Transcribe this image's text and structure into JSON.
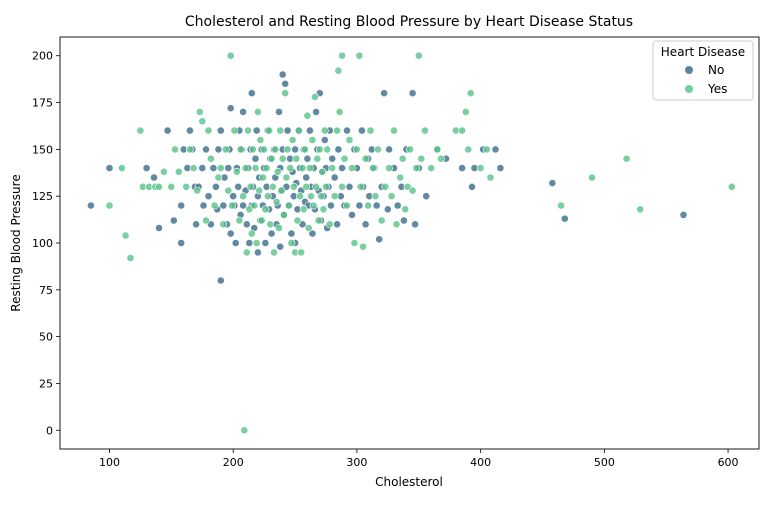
{
  "chart_data": {
    "type": "scatter",
    "title": "Cholesterol and Resting Blood Pressure by Heart Disease Status",
    "xlabel": "Cholesterol",
    "ylabel": "Resting Blood Pressure",
    "xlim": [
      60,
      625
    ],
    "ylim": [
      -10,
      210
    ],
    "xticks": [
      100,
      200,
      300,
      400,
      500,
      600
    ],
    "yticks": [
      0,
      25,
      50,
      75,
      100,
      125,
      150,
      175,
      200
    ],
    "grid": false,
    "legend": {
      "title": "Heart Disease",
      "placement": "top-right"
    },
    "series": [
      {
        "name": "No",
        "color": "#3e6f8e",
        "points": [
          [
            85,
            120
          ],
          [
            100,
            140
          ],
          [
            130,
            140
          ],
          [
            136,
            135
          ],
          [
            140,
            108
          ],
          [
            147,
            160
          ],
          [
            152,
            112
          ],
          [
            158,
            100
          ],
          [
            158,
            120
          ],
          [
            160,
            150
          ],
          [
            163,
            140
          ],
          [
            165,
            160
          ],
          [
            167,
            150
          ],
          [
            169,
            130
          ],
          [
            170,
            110
          ],
          [
            172,
            130
          ],
          [
            175,
            140
          ],
          [
            176,
            120
          ],
          [
            178,
            150
          ],
          [
            180,
            125
          ],
          [
            182,
            110
          ],
          [
            184,
            140
          ],
          [
            186,
            130
          ],
          [
            187,
            118
          ],
          [
            188,
            150
          ],
          [
            190,
            80
          ],
          [
            190,
            160
          ],
          [
            192,
            120
          ],
          [
            193,
            135
          ],
          [
            195,
            110
          ],
          [
            196,
            140
          ],
          [
            197,
            150
          ],
          [
            198,
            105
          ],
          [
            198,
            172
          ],
          [
            200,
            125
          ],
          [
            201,
            120
          ],
          [
            202,
            100
          ],
          [
            203,
            140
          ],
          [
            204,
            130
          ],
          [
            205,
            160
          ],
          [
            206,
            115
          ],
          [
            207,
            150
          ],
          [
            208,
            120
          ],
          [
            208,
            170
          ],
          [
            210,
            128
          ],
          [
            211,
            110
          ],
          [
            212,
            140
          ],
          [
            213,
            100
          ],
          [
            214,
            150
          ],
          [
            215,
            120
          ],
          [
            215,
            180
          ],
          [
            216,
            130
          ],
          [
            217,
            108
          ],
          [
            218,
            145
          ],
          [
            219,
            160
          ],
          [
            220,
            125
          ],
          [
            220,
            95
          ],
          [
            221,
            135
          ],
          [
            222,
            112
          ],
          [
            223,
            150
          ],
          [
            224,
            120
          ],
          [
            225,
            140
          ],
          [
            226,
            100
          ],
          [
            227,
            130
          ],
          [
            228,
            160
          ],
          [
            229,
            118
          ],
          [
            230,
            145
          ],
          [
            231,
            105
          ],
          [
            232,
            125
          ],
          [
            233,
            150
          ],
          [
            234,
            135
          ],
          [
            235,
            110
          ],
          [
            236,
            120
          ],
          [
            237,
            170
          ],
          [
            238,
            140
          ],
          [
            238,
            98
          ],
          [
            239,
            128
          ],
          [
            240,
            190
          ],
          [
            240,
            150
          ],
          [
            241,
            115
          ],
          [
            242,
            185
          ],
          [
            243,
            130
          ],
          [
            244,
            160
          ],
          [
            245,
            120
          ],
          [
            246,
            145
          ],
          [
            247,
            105
          ],
          [
            248,
            138
          ],
          [
            249,
            125
          ],
          [
            250,
            150
          ],
          [
            250,
            100
          ],
          [
            251,
            132
          ],
          [
            252,
            118
          ],
          [
            253,
            160
          ],
          [
            254,
            140
          ],
          [
            255,
            128
          ],
          [
            256,
            110
          ],
          [
            257,
            150
          ],
          [
            258,
            122
          ],
          [
            259,
            135
          ],
          [
            260,
            145
          ],
          [
            261,
            120
          ],
          [
            262,
            160
          ],
          [
            263,
            130
          ],
          [
            264,
            105
          ],
          [
            265,
            140
          ],
          [
            266,
            118
          ],
          [
            267,
            170
          ],
          [
            268,
            150
          ],
          [
            269,
            128
          ],
          [
            270,
            180
          ],
          [
            271,
            112
          ],
          [
            272,
            138
          ],
          [
            273,
            125
          ],
          [
            274,
            155
          ],
          [
            275,
            140
          ],
          [
            276,
            108
          ],
          [
            277,
            130
          ],
          [
            278,
            160
          ],
          [
            279,
            120
          ],
          [
            280,
            145
          ],
          [
            282,
            135
          ],
          [
            284,
            110
          ],
          [
            285,
            150
          ],
          [
            287,
            125
          ],
          [
            288,
            140
          ],
          [
            290,
            120
          ],
          [
            292,
            160
          ],
          [
            294,
            130
          ],
          [
            296,
            115
          ],
          [
            298,
            150
          ],
          [
            300,
            140
          ],
          [
            302,
            120
          ],
          [
            304,
            160
          ],
          [
            305,
            130
          ],
          [
            307,
            110
          ],
          [
            309,
            145
          ],
          [
            310,
            125
          ],
          [
            312,
            150
          ],
          [
            314,
            140
          ],
          [
            316,
            120
          ],
          [
            318,
            102
          ],
          [
            320,
            130
          ],
          [
            322,
            180
          ],
          [
            325,
            118
          ],
          [
            326,
            150
          ],
          [
            330,
            140
          ],
          [
            333,
            120
          ],
          [
            336,
            130
          ],
          [
            338,
            112
          ],
          [
            340,
            150
          ],
          [
            345,
            180
          ],
          [
            347,
            110
          ],
          [
            350,
            140
          ],
          [
            356,
            125
          ],
          [
            365,
            150
          ],
          [
            372,
            145
          ],
          [
            385,
            140
          ],
          [
            393,
            130
          ],
          [
            395,
            140
          ],
          [
            402,
            150
          ],
          [
            412,
            150
          ],
          [
            416,
            140
          ],
          [
            458,
            132
          ],
          [
            468,
            113
          ],
          [
            564,
            115
          ]
        ]
      },
      {
        "name": "Yes",
        "color": "#5bc48a",
        "points": [
          [
            100,
            120
          ],
          [
            110,
            140
          ],
          [
            113,
            104
          ],
          [
            117,
            92
          ],
          [
            125,
            160
          ],
          [
            127,
            130
          ],
          [
            132,
            130
          ],
          [
            137,
            130
          ],
          [
            140,
            130
          ],
          [
            144,
            138
          ],
          [
            150,
            130
          ],
          [
            153,
            150
          ],
          [
            156,
            138
          ],
          [
            162,
            130
          ],
          [
            165,
            150
          ],
          [
            168,
            140
          ],
          [
            171,
            128
          ],
          [
            173,
            170
          ],
          [
            175,
            165
          ],
          [
            178,
            112
          ],
          [
            180,
            160
          ],
          [
            182,
            145
          ],
          [
            185,
            120
          ],
          [
            188,
            135
          ],
          [
            190,
            140
          ],
          [
            192,
            110
          ],
          [
            194,
            150
          ],
          [
            196,
            128
          ],
          [
            198,
            200
          ],
          [
            199,
            120
          ],
          [
            201,
            160
          ],
          [
            203,
            138
          ],
          [
            205,
            112
          ],
          [
            206,
            150
          ],
          [
            208,
            125
          ],
          [
            209,
            0
          ],
          [
            210,
            140
          ],
          [
            211,
            95
          ],
          [
            212,
            160
          ],
          [
            213,
            118
          ],
          [
            214,
            130
          ],
          [
            215,
            105
          ],
          [
            216,
            150
          ],
          [
            217,
            120
          ],
          [
            218,
            140
          ],
          [
            219,
            100
          ],
          [
            220,
            170
          ],
          [
            221,
            128
          ],
          [
            222,
            155
          ],
          [
            223,
            112
          ],
          [
            224,
            135
          ],
          [
            225,
            150
          ],
          [
            226,
            118
          ],
          [
            227,
            140
          ],
          [
            228,
            125
          ],
          [
            229,
            160
          ],
          [
            230,
            110
          ],
          [
            231,
            145
          ],
          [
            232,
            130
          ],
          [
            233,
            95
          ],
          [
            234,
            150
          ],
          [
            235,
            122
          ],
          [
            236,
            138
          ],
          [
            237,
            108
          ],
          [
            238,
            160
          ],
          [
            239,
            128
          ],
          [
            240,
            145
          ],
          [
            241,
            115
          ],
          [
            242,
            180
          ],
          [
            243,
            135
          ],
          [
            244,
            150
          ],
          [
            245,
            120
          ],
          [
            246,
            140
          ],
          [
            247,
            100
          ],
          [
            248,
            155
          ],
          [
            249,
            130
          ],
          [
            250,
            95
          ],
          [
            251,
            145
          ],
          [
            252,
            112
          ],
          [
            253,
            160
          ],
          [
            254,
            125
          ],
          [
            255,
            95
          ],
          [
            256,
            140
          ],
          [
            257,
            118
          ],
          [
            258,
            150
          ],
          [
            259,
            130
          ],
          [
            260,
            168
          ],
          [
            261,
            108
          ],
          [
            262,
            140
          ],
          [
            263,
            125
          ],
          [
            264,
            155
          ],
          [
            265,
            120
          ],
          [
            266,
            178
          ],
          [
            267,
            130
          ],
          [
            268,
            145
          ],
          [
            269,
            112
          ],
          [
            270,
            150
          ],
          [
            271,
            125
          ],
          [
            272,
            138
          ],
          [
            273,
            118
          ],
          [
            274,
            160
          ],
          [
            275,
            130
          ],
          [
            276,
            150
          ],
          [
            278,
            110
          ],
          [
            280,
            140
          ],
          [
            282,
            125
          ],
          [
            284,
            160
          ],
          [
            285,
            192
          ],
          [
            286,
            170
          ],
          [
            288,
            200
          ],
          [
            288,
            130
          ],
          [
            290,
            145
          ],
          [
            292,
            120
          ],
          [
            294,
            155
          ],
          [
            296,
            140
          ],
          [
            298,
            100
          ],
          [
            300,
            150
          ],
          [
            302,
            200
          ],
          [
            303,
            130
          ],
          [
            305,
            98
          ],
          [
            307,
            145
          ],
          [
            309,
            120
          ],
          [
            311,
            160
          ],
          [
            313,
            140
          ],
          [
            315,
            125
          ],
          [
            317,
            150
          ],
          [
            320,
            112
          ],
          [
            323,
            130
          ],
          [
            326,
            140
          ],
          [
            328,
            125
          ],
          [
            330,
            160
          ],
          [
            332,
            110
          ],
          [
            335,
            135
          ],
          [
            337,
            145
          ],
          [
            339,
            118
          ],
          [
            341,
            130
          ],
          [
            343,
            150
          ],
          [
            345,
            128
          ],
          [
            348,
            140
          ],
          [
            350,
            200
          ],
          [
            352,
            145
          ],
          [
            355,
            160
          ],
          [
            360,
            140
          ],
          [
            365,
            150
          ],
          [
            368,
            145
          ],
          [
            380,
            160
          ],
          [
            385,
            160
          ],
          [
            388,
            170
          ],
          [
            390,
            150
          ],
          [
            392,
            180
          ],
          [
            400,
            140
          ],
          [
            405,
            150
          ],
          [
            408,
            135
          ],
          [
            465,
            120
          ],
          [
            490,
            135
          ],
          [
            518,
            145
          ],
          [
            529,
            118
          ],
          [
            603,
            130
          ]
        ]
      }
    ]
  }
}
